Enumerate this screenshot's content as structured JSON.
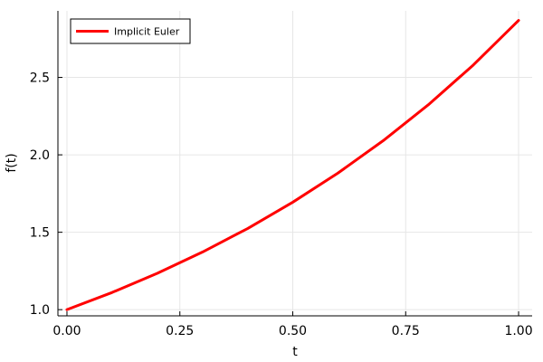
{
  "chart_data": {
    "type": "line",
    "title": "",
    "xlabel": "t",
    "ylabel": "f(t)",
    "xlim": [
      -0.02,
      1.03
    ],
    "ylim": [
      0.96,
      2.93
    ],
    "x_ticks": [
      0.0,
      0.25,
      0.5,
      0.75,
      1.0
    ],
    "x_tick_labels": [
      "0.00",
      "0.25",
      "0.50",
      "0.75",
      "1.00"
    ],
    "y_ticks": [
      1.0,
      1.5,
      2.0,
      2.5
    ],
    "y_tick_labels": [
      "1.0",
      "1.5",
      "2.0",
      "2.5"
    ],
    "grid": true,
    "legend_position": "top-left",
    "series": [
      {
        "name": "Implicit Euler",
        "color": "#ff0000",
        "x": [
          0.0,
          0.1,
          0.2,
          0.3,
          0.4,
          0.5,
          0.6,
          0.7,
          0.8,
          0.9,
          1.0
        ],
        "y": [
          1.0,
          1.111,
          1.235,
          1.372,
          1.524,
          1.694,
          1.882,
          2.091,
          2.323,
          2.581,
          2.868
        ]
      }
    ]
  }
}
